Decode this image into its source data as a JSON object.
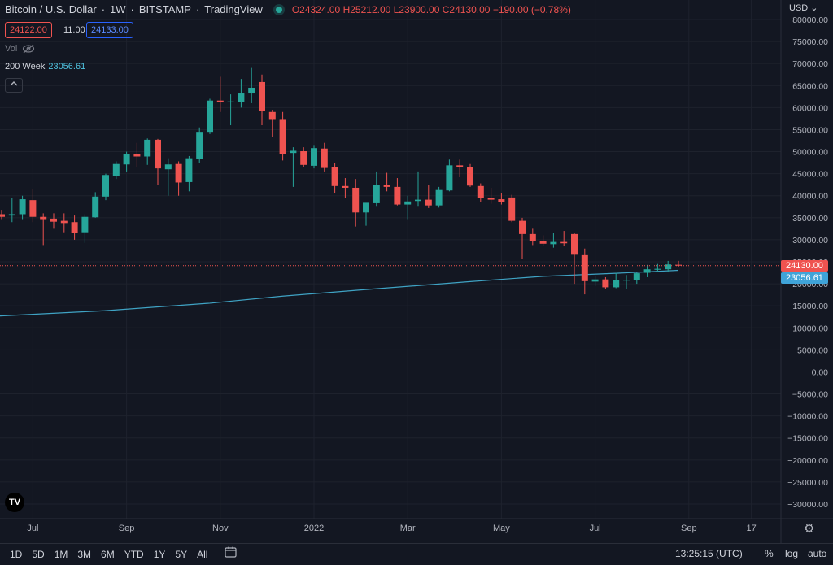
{
  "header": {
    "symbol": "Bitcoin / U.S. Dollar",
    "interval": "1W",
    "exchange": "BITSTAMP",
    "source": "TradingView",
    "open_label": "O",
    "open": "24324.00",
    "high_label": "H",
    "high": "25212.00",
    "low_label": "L",
    "low": "23900.00",
    "close_label": "C",
    "close": "24130.00",
    "change": "−190.00 (−0.78%)"
  },
  "quote": {
    "sell": "24122.00",
    "spread": "11.00",
    "buy": "24133.00"
  },
  "volume": {
    "label": "Vol"
  },
  "ma": {
    "label": "200 Week",
    "value": "23056.61"
  },
  "axis": {
    "currency": "USD"
  },
  "tags": {
    "last": "24130.00",
    "ma": "23056.61"
  },
  "colors": {
    "up": "#26a69a",
    "down": "#ef5350",
    "ma": "#3fa3c4",
    "bg": "#131722",
    "grid": "#1e222d"
  },
  "range_buttons": [
    "1D",
    "5D",
    "1M",
    "3M",
    "6M",
    "YTD",
    "1Y",
    "5Y",
    "All"
  ],
  "bottom": {
    "clock": "13:25:15 (UTC)",
    "percent": "%",
    "log": "log",
    "auto": "auto"
  },
  "icons": {
    "calendar": "calendar-range-icon",
    "settings": "gear-icon",
    "hide": "eye-off-icon",
    "logo": "tradingview-logo"
  },
  "chart_data": {
    "type": "candlestick",
    "y_ticks": [
      80000,
      75000,
      70000,
      65000,
      60000,
      55000,
      50000,
      45000,
      40000,
      35000,
      30000,
      25000,
      20000,
      15000,
      10000,
      5000,
      0,
      -5000,
      -10000,
      -15000,
      -20000,
      -25000,
      -30000
    ],
    "y_tick_labels": [
      "80000.00",
      "75000.00",
      "70000.00",
      "65000.00",
      "60000.00",
      "55000.00",
      "50000.00",
      "45000.00",
      "40000.00",
      "35000.00",
      "30000.00",
      "25000.00",
      "20000.00",
      "15000.00",
      "10000.00",
      "5000.00",
      "0.00",
      "−5000.00",
      "−10000.00",
      "−15000.00",
      "−20000.00",
      "−25000.00",
      "−30000.00"
    ],
    "ylim": [
      -32000,
      82000
    ],
    "x_labels": [
      {
        "label": "Jul",
        "week": 3
      },
      {
        "label": "Sep",
        "week": 12
      },
      {
        "label": "Nov",
        "week": 21
      },
      {
        "label": "2022",
        "week": 30
      },
      {
        "label": "Mar",
        "week": 39
      },
      {
        "label": "May",
        "week": 48
      },
      {
        "label": "Jul",
        "week": 57
      },
      {
        "label": "Sep",
        "week": 66
      },
      {
        "label": "17",
        "week": 72
      }
    ],
    "candles": [
      {
        "w": 0,
        "o": 35800,
        "h": 36800,
        "l": 34500,
        "c": 35200
      },
      {
        "w": 1,
        "o": 35500,
        "h": 39500,
        "l": 34000,
        "c": 35800
      },
      {
        "w": 2,
        "o": 35800,
        "h": 40000,
        "l": 34500,
        "c": 39200
      },
      {
        "w": 3,
        "o": 39000,
        "h": 41500,
        "l": 34000,
        "c": 35200
      },
      {
        "w": 4,
        "o": 35200,
        "h": 36000,
        "l": 28800,
        "c": 34500
      },
      {
        "w": 5,
        "o": 34800,
        "h": 36000,
        "l": 32500,
        "c": 34100
      },
      {
        "w": 6,
        "o": 34300,
        "h": 36000,
        "l": 31700,
        "c": 33800
      },
      {
        "w": 7,
        "o": 34000,
        "h": 35500,
        "l": 30000,
        "c": 31600
      },
      {
        "w": 8,
        "o": 31700,
        "h": 35800,
        "l": 29300,
        "c": 35200
      },
      {
        "w": 9,
        "o": 35100,
        "h": 40800,
        "l": 35000,
        "c": 39800
      },
      {
        "w": 10,
        "o": 39800,
        "h": 45000,
        "l": 39000,
        "c": 44700
      },
      {
        "w": 11,
        "o": 44500,
        "h": 47800,
        "l": 43800,
        "c": 47200
      },
      {
        "w": 12,
        "o": 47100,
        "h": 50000,
        "l": 45500,
        "c": 49400
      },
      {
        "w": 13,
        "o": 49400,
        "h": 52000,
        "l": 46500,
        "c": 48900
      },
      {
        "w": 14,
        "o": 48900,
        "h": 53000,
        "l": 47000,
        "c": 52700
      },
      {
        "w": 15,
        "o": 52700,
        "h": 52900,
        "l": 42500,
        "c": 46200
      },
      {
        "w": 16,
        "o": 46000,
        "h": 48500,
        "l": 40000,
        "c": 47100
      },
      {
        "w": 17,
        "o": 47200,
        "h": 47800,
        "l": 40000,
        "c": 43000
      },
      {
        "w": 18,
        "o": 43100,
        "h": 49000,
        "l": 41000,
        "c": 48500
      },
      {
        "w": 19,
        "o": 48300,
        "h": 55500,
        "l": 47500,
        "c": 54500
      },
      {
        "w": 20,
        "o": 54500,
        "h": 62000,
        "l": 54000,
        "c": 61600
      },
      {
        "w": 21,
        "o": 61600,
        "h": 67000,
        "l": 59000,
        "c": 61200
      },
      {
        "w": 22,
        "o": 61200,
        "h": 63000,
        "l": 56000,
        "c": 61400
      },
      {
        "w": 23,
        "o": 61200,
        "h": 66500,
        "l": 60000,
        "c": 63200
      },
      {
        "w": 24,
        "o": 63200,
        "h": 69000,
        "l": 61000,
        "c": 64500
      },
      {
        "w": 25,
        "o": 65800,
        "h": 67500,
        "l": 56000,
        "c": 59200
      },
      {
        "w": 26,
        "o": 59000,
        "h": 59500,
        "l": 53300,
        "c": 57400
      },
      {
        "w": 27,
        "o": 57400,
        "h": 59000,
        "l": 48000,
        "c": 49400
      },
      {
        "w": 28,
        "o": 49700,
        "h": 51000,
        "l": 42000,
        "c": 50200
      },
      {
        "w": 29,
        "o": 50100,
        "h": 51000,
        "l": 46500,
        "c": 47000
      },
      {
        "w": 30,
        "o": 46800,
        "h": 51500,
        "l": 46200,
        "c": 50800
      },
      {
        "w": 31,
        "o": 50700,
        "h": 52000,
        "l": 45500,
        "c": 46300
      },
      {
        "w": 32,
        "o": 46500,
        "h": 47500,
        "l": 40500,
        "c": 42200
      },
      {
        "w": 33,
        "o": 42200,
        "h": 44000,
        "l": 39500,
        "c": 41800
      },
      {
        "w": 34,
        "o": 41800,
        "h": 43800,
        "l": 33000,
        "c": 36200
      },
      {
        "w": 35,
        "o": 36200,
        "h": 38000,
        "l": 33200,
        "c": 38400
      },
      {
        "w": 36,
        "o": 38300,
        "h": 45500,
        "l": 37500,
        "c": 42500
      },
      {
        "w": 37,
        "o": 42400,
        "h": 45200,
        "l": 41000,
        "c": 42000
      },
      {
        "w": 38,
        "o": 42000,
        "h": 44000,
        "l": 37800,
        "c": 38000
      },
      {
        "w": 39,
        "o": 38000,
        "h": 40000,
        "l": 34500,
        "c": 38700
      },
      {
        "w": 40,
        "o": 38800,
        "h": 45500,
        "l": 37500,
        "c": 39100
      },
      {
        "w": 41,
        "o": 39100,
        "h": 42500,
        "l": 37200,
        "c": 37800
      },
      {
        "w": 42,
        "o": 37800,
        "h": 42000,
        "l": 37300,
        "c": 41300
      },
      {
        "w": 43,
        "o": 41200,
        "h": 48200,
        "l": 41000,
        "c": 46900
      },
      {
        "w": 44,
        "o": 46900,
        "h": 48200,
        "l": 44200,
        "c": 46500
      },
      {
        "w": 45,
        "o": 46500,
        "h": 47200,
        "l": 42000,
        "c": 42300
      },
      {
        "w": 46,
        "o": 42200,
        "h": 42800,
        "l": 38500,
        "c": 39500
      },
      {
        "w": 47,
        "o": 39500,
        "h": 41800,
        "l": 38200,
        "c": 39100
      },
      {
        "w": 48,
        "o": 39200,
        "h": 40500,
        "l": 38000,
        "c": 38600
      },
      {
        "w": 49,
        "o": 39600,
        "h": 40200,
        "l": 34000,
        "c": 34300
      },
      {
        "w": 50,
        "o": 34300,
        "h": 35000,
        "l": 25700,
        "c": 31300
      },
      {
        "w": 51,
        "o": 31300,
        "h": 32500,
        "l": 28800,
        "c": 29800
      },
      {
        "w": 52,
        "o": 29800,
        "h": 31000,
        "l": 28500,
        "c": 29100
      },
      {
        "w": 53,
        "o": 29000,
        "h": 31500,
        "l": 28200,
        "c": 29500
      },
      {
        "w": 54,
        "o": 29500,
        "h": 32000,
        "l": 28500,
        "c": 29200
      },
      {
        "w": 55,
        "o": 31300,
        "h": 31500,
        "l": 20000,
        "c": 26600
      },
      {
        "w": 56,
        "o": 26500,
        "h": 28000,
        "l": 17600,
        "c": 20600
      },
      {
        "w": 57,
        "o": 20500,
        "h": 21800,
        "l": 19500,
        "c": 21000
      },
      {
        "w": 58,
        "o": 21000,
        "h": 21500,
        "l": 18800,
        "c": 19200
      },
      {
        "w": 59,
        "o": 19200,
        "h": 22500,
        "l": 19000,
        "c": 20800
      },
      {
        "w": 60,
        "o": 20800,
        "h": 22000,
        "l": 18900,
        "c": 20900
      },
      {
        "w": 61,
        "o": 20900,
        "h": 22500,
        "l": 20000,
        "c": 22400
      },
      {
        "w": 62,
        "o": 22500,
        "h": 24300,
        "l": 21500,
        "c": 23300
      },
      {
        "w": 63,
        "o": 23200,
        "h": 24500,
        "l": 22800,
        "c": 23400
      },
      {
        "w": 64,
        "o": 23300,
        "h": 25200,
        "l": 22700,
        "c": 24400
      },
      {
        "w": 65,
        "o": 24324,
        "h": 25212,
        "l": 23900,
        "c": 24130
      }
    ],
    "ma_points": [
      {
        "w": -1,
        "v": 12600
      },
      {
        "w": 10,
        "v": 13900
      },
      {
        "w": 20,
        "v": 15600
      },
      {
        "w": 27,
        "v": 17200
      },
      {
        "w": 35,
        "v": 18700
      },
      {
        "w": 45,
        "v": 20500
      },
      {
        "w": 52,
        "v": 21700
      },
      {
        "w": 60,
        "v": 22500
      },
      {
        "w": 65,
        "v": 23056.61
      }
    ],
    "last_price": 24130,
    "grid": true
  }
}
